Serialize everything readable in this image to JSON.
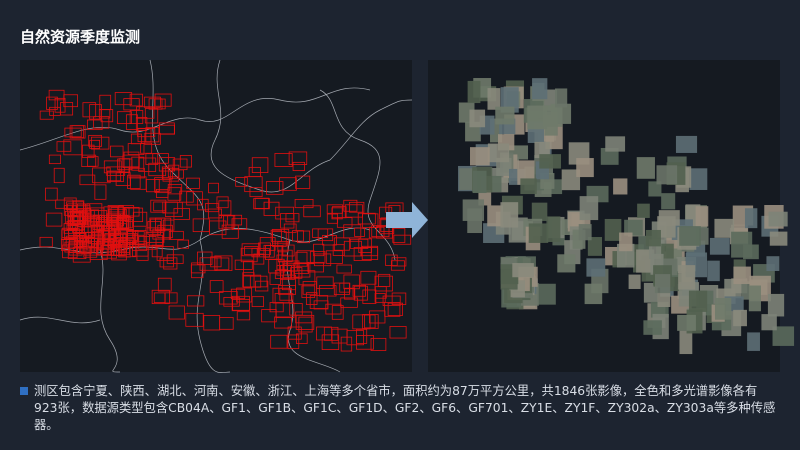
{
  "header": {
    "title": "自然资源季度监测"
  },
  "description": "测区包含宁夏、陕西、湖北、河南、安徽、浙江、上海等多个省市，面积约为87万平方公里，共1846张影像，全色和多光谱影像各有923张，数据源类型包含CB04A、GF1、GF1B、GF1C、GF1D、GF2、GF6、GF701、ZY1E、ZY1F、ZY302a、ZY303a等多种传感器。"
}
